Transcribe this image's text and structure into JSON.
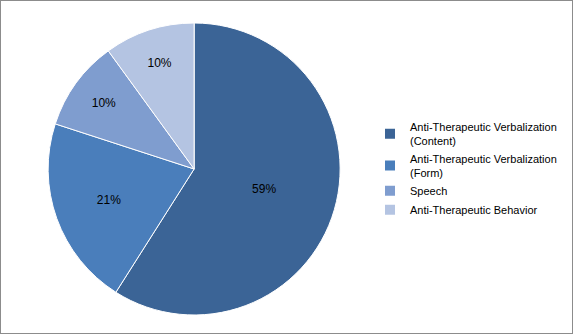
{
  "chart_data": {
    "type": "pie",
    "categories": [
      "Anti-Therapeutic Verbalization (Content)",
      "Anti-Therapeutic Verbalization (Form)",
      "Speech",
      "Anti-Therapeutic Behavior"
    ],
    "values": [
      59,
      21,
      10,
      10
    ],
    "value_labels": [
      "59%",
      "21%",
      "10%",
      "10%"
    ],
    "colors": [
      "#3b6496",
      "#4a7ebb",
      "#7f9dcf",
      "#b4c4e2"
    ],
    "data_labels": true,
    "legend": "right"
  }
}
